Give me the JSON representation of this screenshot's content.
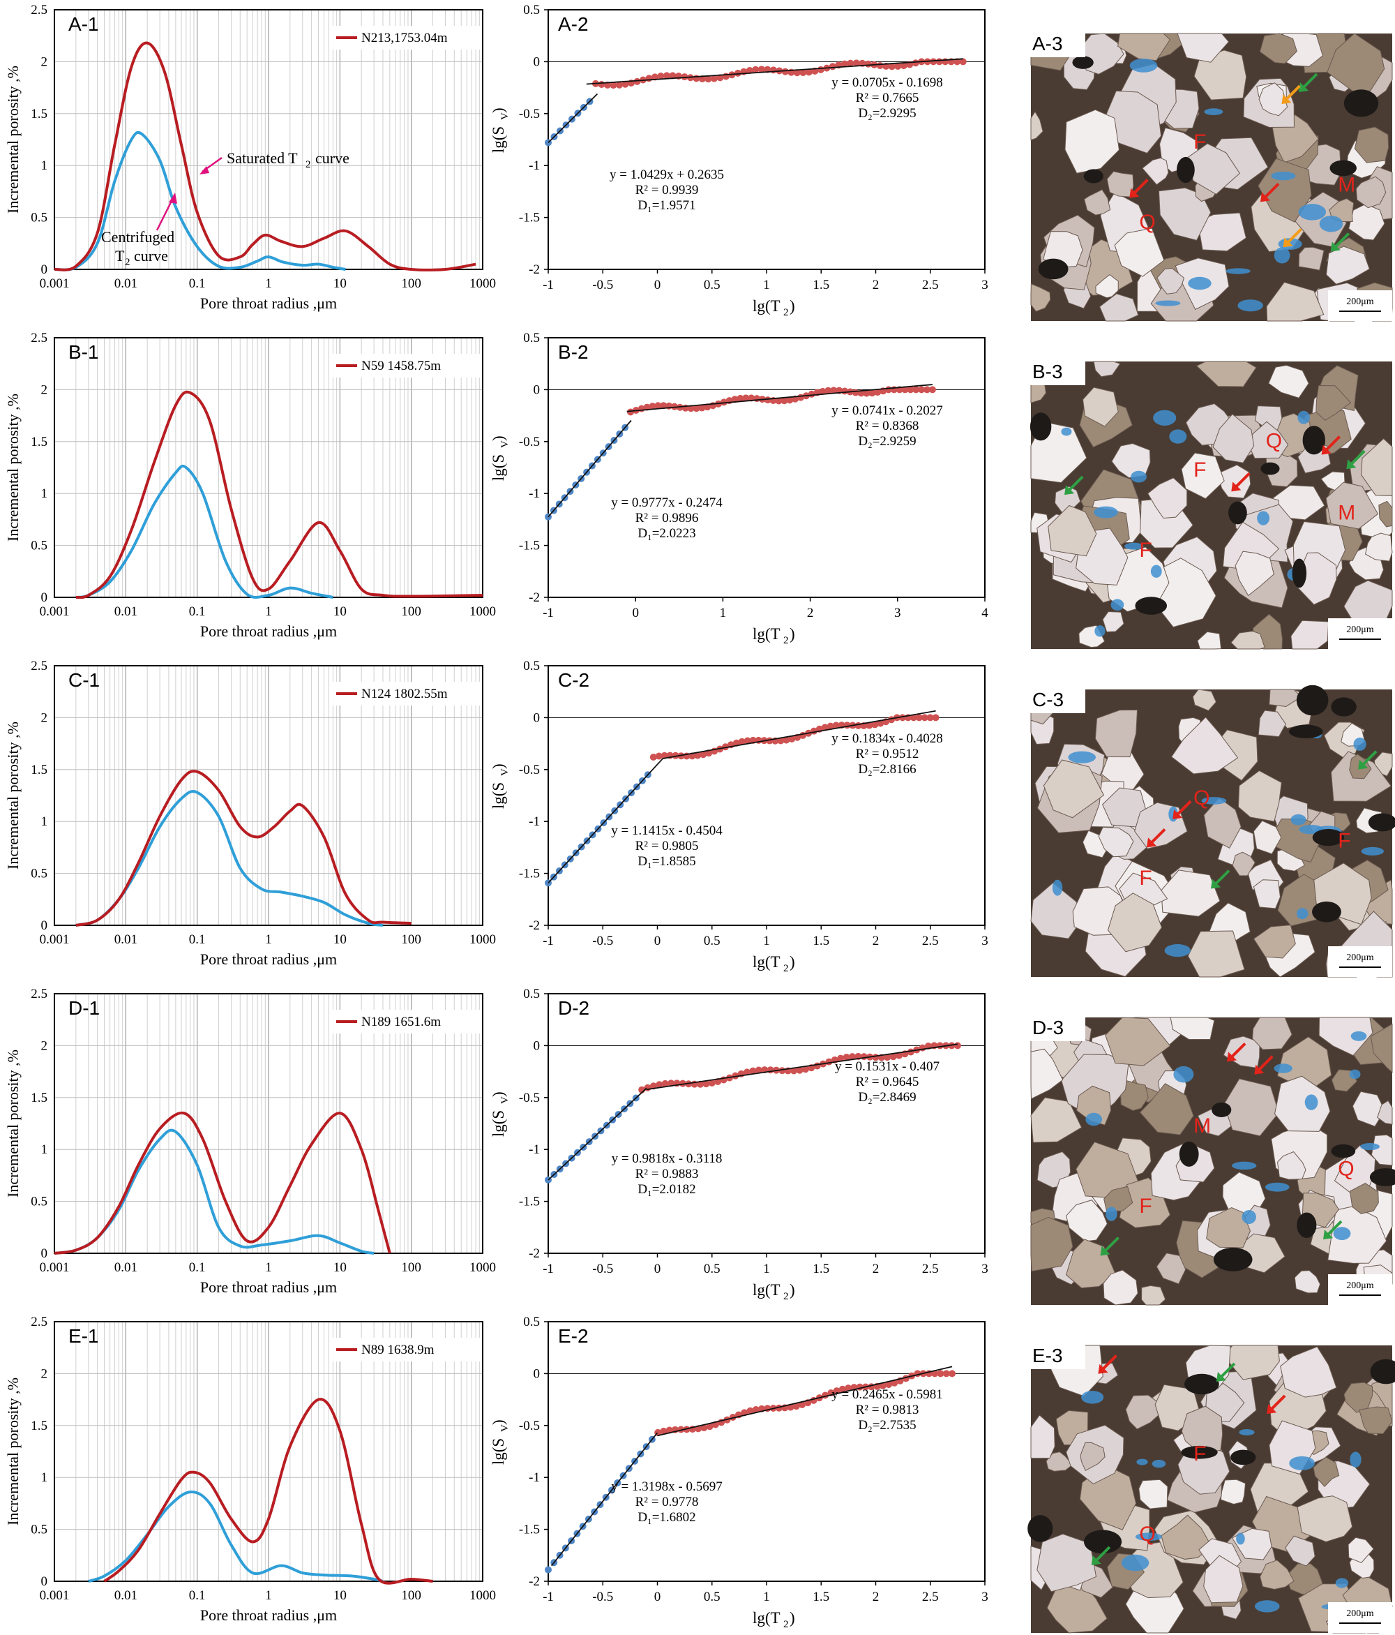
{
  "colors": {
    "saturated": "#b81d22",
    "centrifuged": "#2f9fd8",
    "scatter_red": "#cf5252",
    "scatter_blue": "#4f86c6",
    "fit_line": "#111111",
    "pore_blue": "#3f8fd0",
    "grain_light": "#e9e2e2",
    "matrix_dark": "#4a3c33",
    "arrow_red": "#e2231a",
    "arrow_green": "#2ea043",
    "arrow_orange": "#f39c1a"
  },
  "chart_data": [
    {
      "id": "A-1",
      "type": "line",
      "title": "A-1",
      "xlabel": "Pore throat radius ,μm",
      "ylabel": "Incremental porosity ,%",
      "xscale": "log",
      "xlim": [
        0.001,
        1000
      ],
      "ylim": [
        0,
        2.5
      ],
      "xticks": [
        "0.001",
        "0.01",
        "0.1",
        "1",
        "10",
        "100",
        "1000"
      ],
      "yticks": [
        "0",
        "0.5",
        "1",
        "1.5",
        "2",
        "2.5"
      ],
      "legend": "N213,1753.04m",
      "legend_position": "top-right",
      "annotations": [
        "Saturated T2 curve",
        "Centrifuged",
        "T2 curve"
      ],
      "series": [
        {
          "role": "saturated",
          "x": [
            0.001,
            0.002,
            0.004,
            0.007,
            0.012,
            0.02,
            0.035,
            0.06,
            0.1,
            0.2,
            0.4,
            0.6,
            0.9,
            1.5,
            3,
            6,
            12,
            25,
            50,
            100,
            300,
            800
          ],
          "y": [
            0,
            0.03,
            0.35,
            1.2,
            1.95,
            2.18,
            1.9,
            1.2,
            0.55,
            0.13,
            0.12,
            0.24,
            0.33,
            0.27,
            0.22,
            0.3,
            0.37,
            0.22,
            0.05,
            0,
            0,
            0.05
          ]
        },
        {
          "role": "centrifuged",
          "x": [
            0.001,
            0.002,
            0.004,
            0.007,
            0.012,
            0.017,
            0.03,
            0.05,
            0.1,
            0.2,
            0.4,
            0.7,
            1,
            1.6,
            3,
            5,
            8,
            12
          ],
          "y": [
            0,
            0.02,
            0.25,
            0.85,
            1.25,
            1.3,
            1.05,
            0.6,
            0.22,
            0.03,
            0.02,
            0.08,
            0.12,
            0.07,
            0.04,
            0.05,
            0.02,
            0
          ]
        }
      ]
    },
    {
      "id": "B-1",
      "type": "line",
      "title": "B-1",
      "xlabel": "Pore throat radius ,μm",
      "ylabel": "Incremental porosity ,%",
      "xscale": "log",
      "xlim": [
        0.001,
        1000
      ],
      "ylim": [
        0,
        2.5
      ],
      "xticks": [
        "0.001",
        "0.01",
        "0.1",
        "1",
        "10",
        "100",
        "1000"
      ],
      "yticks": [
        "0",
        "0.5",
        "1",
        "1.5",
        "2",
        "2.5"
      ],
      "legend": "N59 1458.75m",
      "legend_position": "top-right",
      "series": [
        {
          "role": "saturated",
          "x": [
            0.002,
            0.003,
            0.006,
            0.012,
            0.025,
            0.05,
            0.08,
            0.15,
            0.3,
            0.6,
            1,
            2,
            5,
            10,
            20,
            40,
            100,
            1000
          ],
          "y": [
            0,
            0.02,
            0.2,
            0.65,
            1.3,
            1.85,
            1.97,
            1.7,
            0.85,
            0.18,
            0.08,
            0.35,
            0.72,
            0.45,
            0.08,
            0.02,
            0.01,
            0.02
          ]
        },
        {
          "role": "centrifuged",
          "x": [
            0.002,
            0.003,
            0.006,
            0.012,
            0.025,
            0.05,
            0.07,
            0.12,
            0.25,
            0.5,
            1,
            2,
            4,
            8
          ],
          "y": [
            0,
            0.02,
            0.15,
            0.45,
            0.9,
            1.2,
            1.25,
            1.0,
            0.35,
            0.03,
            0.02,
            0.09,
            0.04,
            0
          ]
        }
      ]
    },
    {
      "id": "C-1",
      "type": "line",
      "title": "C-1",
      "xlabel": "Pore throat radius ,μm",
      "ylabel": "Incremental porosity ,%",
      "xscale": "log",
      "xlim": [
        0.001,
        1000
      ],
      "ylim": [
        0,
        2.5
      ],
      "xticks": [
        "0.001",
        "0.01",
        "0.1",
        "1",
        "10",
        "100",
        "1000"
      ],
      "yticks": [
        "0",
        "0.5",
        "1",
        "1.5",
        "2",
        "2.5"
      ],
      "legend": "N124 1802.55m",
      "legend_position": "top-right",
      "series": [
        {
          "role": "saturated",
          "x": [
            0.002,
            0.004,
            0.008,
            0.015,
            0.03,
            0.06,
            0.1,
            0.2,
            0.4,
            0.7,
            1.2,
            2,
            3,
            6,
            12,
            25,
            40,
            100
          ],
          "y": [
            0,
            0.05,
            0.25,
            0.6,
            1.05,
            1.4,
            1.48,
            1.3,
            0.95,
            0.85,
            0.95,
            1.1,
            1.15,
            0.85,
            0.3,
            0.05,
            0.03,
            0.02
          ]
        },
        {
          "role": "centrifuged",
          "x": [
            0.002,
            0.004,
            0.008,
            0.015,
            0.03,
            0.06,
            0.1,
            0.2,
            0.4,
            0.8,
            1.5,
            3,
            6,
            12,
            25,
            40
          ],
          "y": [
            0,
            0.05,
            0.25,
            0.55,
            0.95,
            1.22,
            1.28,
            1.05,
            0.55,
            0.35,
            0.32,
            0.28,
            0.22,
            0.1,
            0.02,
            0
          ]
        }
      ]
    },
    {
      "id": "D-1",
      "type": "line",
      "title": "D-1",
      "xlabel": "Pore throat radius ,μm",
      "ylabel": "Incremental porosity ,%",
      "xscale": "log",
      "xlim": [
        0.001,
        1000
      ],
      "ylim": [
        0,
        2.5
      ],
      "xticks": [
        "0.001",
        "0.01",
        "0.1",
        "1",
        "10",
        "100",
        "1000"
      ],
      "yticks": [
        "0",
        "0.5",
        "1",
        "1.5",
        "2",
        "2.5"
      ],
      "legend": "N189 1651.6m",
      "legend_position": "top-right",
      "series": [
        {
          "role": "saturated",
          "x": [
            0.001,
            0.002,
            0.004,
            0.008,
            0.015,
            0.03,
            0.065,
            0.12,
            0.25,
            0.5,
            1,
            2,
            4,
            10,
            20,
            35,
            50
          ],
          "y": [
            0,
            0.03,
            0.15,
            0.45,
            0.85,
            1.2,
            1.35,
            1.1,
            0.5,
            0.12,
            0.25,
            0.65,
            1.05,
            1.35,
            1.0,
            0.4,
            0
          ]
        },
        {
          "role": "centrifuged",
          "x": [
            0.001,
            0.002,
            0.004,
            0.008,
            0.015,
            0.03,
            0.05,
            0.1,
            0.2,
            0.4,
            0.8,
            2,
            5,
            10,
            20,
            30
          ],
          "y": [
            0,
            0.03,
            0.15,
            0.42,
            0.8,
            1.1,
            1.17,
            0.85,
            0.25,
            0.07,
            0.08,
            0.12,
            0.17,
            0.1,
            0.02,
            0
          ]
        }
      ]
    },
    {
      "id": "E-1",
      "type": "line",
      "title": "E-1",
      "xlabel": "Pore throat radius ,μm",
      "ylabel": "Incremental porosity ,%",
      "xscale": "log",
      "xlim": [
        0.001,
        1000
      ],
      "ylim": [
        0,
        2.5
      ],
      "xticks": [
        "0.001",
        "0.01",
        "0.1",
        "1",
        "10",
        "100",
        "1000"
      ],
      "yticks": [
        "0",
        "0.5",
        "1",
        "1.5",
        "2",
        "2.5"
      ],
      "legend": "N89 1638.9m",
      "legend_position": "top-right",
      "series": [
        {
          "role": "saturated",
          "x": [
            0.005,
            0.008,
            0.015,
            0.03,
            0.06,
            0.09,
            0.15,
            0.3,
            0.6,
            1,
            2,
            5,
            10,
            20,
            35,
            100,
            200
          ],
          "y": [
            0,
            0.1,
            0.3,
            0.65,
            0.98,
            1.05,
            0.95,
            0.6,
            0.38,
            0.6,
            1.3,
            1.75,
            1.45,
            0.55,
            0.02,
            0.02,
            0
          ]
        },
        {
          "role": "centrifuged",
          "x": [
            0.003,
            0.005,
            0.01,
            0.02,
            0.04,
            0.08,
            0.15,
            0.3,
            0.6,
            1.5,
            3,
            6,
            15,
            30,
            40
          ],
          "y": [
            0,
            0.05,
            0.2,
            0.45,
            0.72,
            0.86,
            0.75,
            0.35,
            0.08,
            0.15,
            0.08,
            0.06,
            0.05,
            0.02,
            0
          ]
        }
      ]
    },
    {
      "id": "A-2",
      "type": "scatter",
      "title": "A-2",
      "xlabel": "lg(T2)",
      "ylabel": "lg(Sv)",
      "xlim": [
        -1,
        3
      ],
      "ylim": [
        -2,
        0.5
      ],
      "xticks": [
        "-1",
        "-0.5",
        "0",
        "0.5",
        "1",
        "1.5",
        "2",
        "2.5",
        "3"
      ],
      "yticks": [
        "-2",
        "-1.5",
        "-1",
        "-0.5",
        "0",
        "0.5"
      ],
      "break_x": -0.6,
      "x_start": -1,
      "x_end": 2.8,
      "fit1": {
        "slope": 1.0429,
        "intercept": 0.2635,
        "x": [
          -1,
          -0.55
        ]
      },
      "fit2": {
        "slope": 0.0705,
        "intercept": -0.1698,
        "x": [
          -0.65,
          2.8
        ]
      },
      "equations": {
        "eq1": [
          "y = 1.0429x + 0.2635",
          "R² = 0.9939",
          "D₁=1.9571"
        ],
        "eq2": [
          "y = 0.0705x - 0.1698",
          "R² = 0.7665",
          "D₂=2.9295"
        ]
      }
    },
    {
      "id": "B-2",
      "type": "scatter",
      "title": "B-2",
      "xlabel": "lg(T2)",
      "ylabel": "lg(Sv)",
      "xlim": [
        -1,
        4
      ],
      "ylim": [
        -2,
        0.5
      ],
      "xticks": [
        "-1",
        "0",
        "1",
        "2",
        "3",
        "4"
      ],
      "yticks": [
        "-2",
        "-1.5",
        "-1",
        "-0.5",
        "0",
        "0.5"
      ],
      "break_x": -0.1,
      "x_start": -1,
      "x_end": 3.4,
      "fit1": {
        "slope": 0.9777,
        "intercept": -0.2474,
        "x": [
          -1,
          -0.05
        ]
      },
      "fit2": {
        "slope": 0.0741,
        "intercept": -0.2027,
        "x": [
          -0.1,
          3.4
        ]
      },
      "equations": {
        "eq1": [
          "y = 0.9777x - 0.2474",
          "R² = 0.9896",
          "D₁=2.0223"
        ],
        "eq2": [
          "y = 0.0741x - 0.2027",
          "R² = 0.8368",
          "D₂=2.9259"
        ]
      }
    },
    {
      "id": "C-2",
      "type": "scatter",
      "title": "C-2",
      "xlabel": "lg(T2)",
      "ylabel": "lg(Sv)",
      "xlim": [
        -1,
        3
      ],
      "ylim": [
        -2,
        0.5
      ],
      "xticks": [
        "-1",
        "-0.5",
        "0",
        "0.5",
        "1",
        "1.5",
        "2",
        "2.5",
        "3"
      ],
      "yticks": [
        "-2",
        "-1.5",
        "-1",
        "-0.5",
        "0",
        "0.5"
      ],
      "break_x": -0.05,
      "x_start": -1,
      "x_end": 2.55,
      "fit1": {
        "slope": 1.1415,
        "intercept": -0.4504,
        "x": [
          -1,
          0.05
        ]
      },
      "fit2": {
        "slope": 0.1834,
        "intercept": -0.4028,
        "x": [
          0.05,
          2.55
        ]
      },
      "equations": {
        "eq1": [
          "y = 1.1415x - 0.4504",
          "R² = 0.9805",
          "D₁=1.8585"
        ],
        "eq2": [
          "y = 0.1834x - 0.4028",
          "R² = 0.9512",
          "D₂=2.8166"
        ]
      }
    },
    {
      "id": "D-2",
      "type": "scatter",
      "title": "D-2",
      "xlabel": "lg(T2)",
      "ylabel": "lg(Sv)",
      "xlim": [
        -1,
        3
      ],
      "ylim": [
        -2,
        0.5
      ],
      "xticks": [
        "-1",
        "-0.5",
        "0",
        "0.5",
        "1",
        "1.5",
        "2",
        "2.5",
        "3"
      ],
      "yticks": [
        "-2",
        "-1.5",
        "-1",
        "-0.5",
        "0",
        "0.5"
      ],
      "break_x": -0.15,
      "x_start": -1,
      "x_end": 2.75,
      "fit1": {
        "slope": 0.9818,
        "intercept": -0.3118,
        "x": [
          -1,
          -0.1
        ]
      },
      "fit2": {
        "slope": 0.1531,
        "intercept": -0.407,
        "x": [
          -0.1,
          2.75
        ]
      },
      "equations": {
        "eq1": [
          "y = 0.9818x - 0.3118",
          "R² = 0.9883",
          "D₁=2.0182"
        ],
        "eq2": [
          "y = 0.1531x - 0.407",
          "R² = 0.9645",
          "D₂=2.8469"
        ]
      }
    },
    {
      "id": "E-2",
      "type": "scatter",
      "title": "E-2",
      "xlabel": "lg(T2)",
      "ylabel": "lg(Sv)",
      "xlim": [
        -1,
        3
      ],
      "ylim": [
        -2,
        0.5
      ],
      "xticks": [
        "-1",
        "-0.5",
        "0",
        "0.5",
        "1",
        "1.5",
        "2",
        "2.5",
        "3"
      ],
      "yticks": [
        "-2",
        "-1.5",
        "-1",
        "-0.5",
        "0",
        "0.5"
      ],
      "break_x": 0,
      "x_start": -1,
      "x_end": 2.7,
      "fit1": {
        "slope": 1.3198,
        "intercept": -0.5697,
        "x": [
          -0.97,
          0
        ]
      },
      "fit2": {
        "slope": 0.2465,
        "intercept": -0.5981,
        "x": [
          0,
          2.7
        ]
      },
      "equations": {
        "eq1": [
          "y = 1.3198x - 0.5697",
          "R² = 0.9778",
          "D₁=1.6802"
        ],
        "eq2": [
          "y = 0.2465x - 0.5981",
          "R² = 0.9813",
          "D₂=2.7535"
        ]
      }
    }
  ],
  "micrographs": [
    {
      "id": "A-3",
      "title": "A-3",
      "scale": "200μm",
      "labels": [
        "F",
        "Q",
        "M"
      ]
    },
    {
      "id": "B-3",
      "title": "B-3",
      "scale": "200μm",
      "labels": [
        "F",
        "F",
        "M",
        "Q"
      ]
    },
    {
      "id": "C-3",
      "title": "C-3",
      "scale": "200μm",
      "labels": [
        "Q",
        "F",
        "F"
      ]
    },
    {
      "id": "D-3",
      "title": "D-3",
      "scale": "200μm",
      "labels": [
        "M",
        "F",
        "Q"
      ]
    },
    {
      "id": "E-3",
      "title": "E-3",
      "scale": "200μm",
      "labels": [
        "F",
        "Q"
      ]
    }
  ]
}
